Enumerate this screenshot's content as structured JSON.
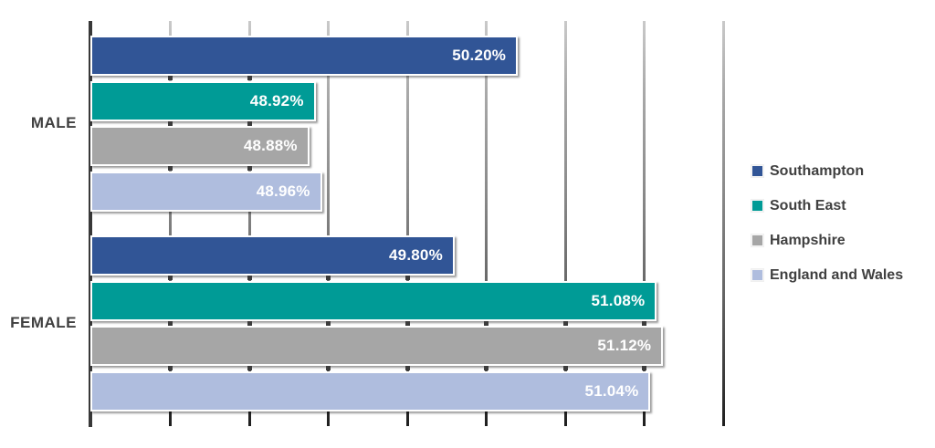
{
  "chart_data": {
    "type": "bar",
    "orientation": "horizontal",
    "categories": [
      "MALE",
      "FEMALE"
    ],
    "series": [
      {
        "name": "Southampton",
        "color": "#315596",
        "values": [
          50.2,
          49.8
        ],
        "labels": [
          "50.20%",
          "49.80%"
        ]
      },
      {
        "name": "South East",
        "color": "#009B96",
        "values": [
          48.92,
          51.08
        ],
        "labels": [
          "48.92%",
          "51.08%"
        ]
      },
      {
        "name": "Hampshire",
        "color": "#A6A6A6",
        "values": [
          48.88,
          51.12
        ],
        "labels": [
          "48.88%",
          "51.12%"
        ]
      },
      {
        "name": "England and Wales",
        "color": "#AFBDDE",
        "values": [
          48.96,
          51.04
        ],
        "labels": [
          "48.96%",
          "51.04%"
        ]
      }
    ],
    "value_axis": {
      "min": 47.5,
      "max": 51.5,
      "gridline_interval": 0.5,
      "tick_labels_visible": false
    },
    "category_axis": {
      "labels": [
        "MALE",
        "FEMALE"
      ]
    },
    "legend": {
      "position": "right"
    },
    "grid": true,
    "data_labels_visible": true
  },
  "style": {
    "background": "#FFFFFF",
    "axis_color": "#383838",
    "gridline_top_color": "#C9C9C9",
    "gridline_bottom_color": "#1E1E1E",
    "category_label_color": "#404040",
    "legend_text_color": "#404040",
    "data_label_color": "#FFFFFF"
  }
}
